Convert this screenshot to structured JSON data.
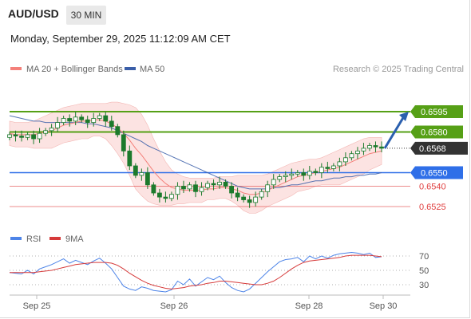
{
  "header": {
    "symbol": "AUD/USD",
    "interval": "30 MIN",
    "datetime": "Monday, September 29, 2025 11:12:09 AM CET"
  },
  "colors": {
    "ma20": "#f4807a",
    "ma50": "#3a5ea8",
    "band_fill": "#fbd9d8",
    "level_green": "#56a016",
    "level_blue": "#2f6fe8",
    "level_red": "#e04040",
    "current_price": "#333333",
    "arrow": "#2a5fae",
    "candle": "#1c7a2c",
    "rsi": "#4d84e8",
    "rsi_ma": "#d63a3a"
  },
  "chart_data": [
    {
      "type": "line",
      "title": "",
      "legend": [
        {
          "name": "MA 20 + Bollinger Bands",
          "color": "#f4807a"
        },
        {
          "name": "MA 50",
          "color": "#3a5ea8"
        }
      ],
      "credit": "Research © 2025 Trading Central",
      "x_ticks": [
        "Sep 25",
        "Sep 26",
        "Sep 28",
        "Sep 30"
      ],
      "ylim": [
        0.651,
        0.661
      ],
      "price_levels": [
        {
          "label": "0.6595",
          "value": 0.6595,
          "kind": "resistance"
        },
        {
          "label": "0.6580",
          "value": 0.658,
          "kind": "resistance"
        },
        {
          "label": "0.6568",
          "value": 0.6568,
          "kind": "current"
        },
        {
          "label": "0.6550",
          "value": 0.655,
          "kind": "pivot"
        },
        {
          "label": "0.6540",
          "value": 0.654,
          "kind": "support"
        },
        {
          "label": "0.6525",
          "value": 0.6525,
          "kind": "support"
        }
      ],
      "projection": {
        "from": 0.6568,
        "to": 0.6595
      },
      "series": [
        {
          "name": "Price",
          "values": [
            0.6578,
            0.6577,
            0.6576,
            0.6578,
            0.6575,
            0.6579,
            0.6581,
            0.6583,
            0.6587,
            0.659,
            0.6588,
            0.6591,
            0.6589,
            0.6587,
            0.659,
            0.6592,
            0.6588,
            0.6584,
            0.6578,
            0.6566,
            0.6555,
            0.6548,
            0.655,
            0.6541,
            0.6535,
            0.6532,
            0.6531,
            0.6534,
            0.654,
            0.6538,
            0.6541,
            0.6536,
            0.6539,
            0.6542,
            0.6541,
            0.6543,
            0.654,
            0.6535,
            0.6532,
            0.653,
            0.6528,
            0.6532,
            0.6536,
            0.6541,
            0.6545,
            0.6547,
            0.6548,
            0.6549,
            0.655,
            0.6548,
            0.6551,
            0.655,
            0.6554,
            0.6553,
            0.6555,
            0.6558,
            0.6561,
            0.6564,
            0.6566,
            0.6568,
            0.657,
            0.6569,
            0.6568
          ]
        },
        {
          "name": "MA 20",
          "values": [
            0.6579,
            0.6578,
            0.6578,
            0.6578,
            0.6578,
            0.6579,
            0.658,
            0.6581,
            0.6583,
            0.6585,
            0.6586,
            0.6587,
            0.6588,
            0.6588,
            0.6589,
            0.6589,
            0.6588,
            0.6586,
            0.6583,
            0.6579,
            0.6574,
            0.6568,
            0.6563,
            0.6557,
            0.6551,
            0.6546,
            0.6542,
            0.6539,
            0.6538,
            0.6537,
            0.6537,
            0.6537,
            0.6537,
            0.6538,
            0.6538,
            0.6539,
            0.6539,
            0.6538,
            0.6537,
            0.6535,
            0.6534,
            0.6534,
            0.6535,
            0.6537,
            0.6539,
            0.6541,
            0.6543,
            0.6545,
            0.6547,
            0.6548,
            0.6549,
            0.655,
            0.6551,
            0.6552,
            0.6553,
            0.6554,
            0.6556,
            0.6558,
            0.656,
            0.6562,
            0.6564,
            0.6565,
            0.6566
          ]
        },
        {
          "name": "Upper Band",
          "values": [
            0.6588,
            0.6587,
            0.6587,
            0.6587,
            0.6588,
            0.659,
            0.6592,
            0.6594,
            0.6596,
            0.6598,
            0.6599,
            0.66,
            0.6601,
            0.6601,
            0.6601,
            0.6601,
            0.6601,
            0.6602,
            0.6602,
            0.6601,
            0.66,
            0.6598,
            0.6593,
            0.6585,
            0.6575,
            0.6566,
            0.6558,
            0.6552,
            0.6549,
            0.6547,
            0.6546,
            0.6546,
            0.6546,
            0.6546,
            0.6546,
            0.6547,
            0.6547,
            0.6547,
            0.6548,
            0.6548,
            0.6548,
            0.6548,
            0.6548,
            0.6549,
            0.6551,
            0.6553,
            0.6555,
            0.6557,
            0.6558,
            0.6559,
            0.656,
            0.656,
            0.6561,
            0.6563,
            0.6565,
            0.6567,
            0.6569,
            0.6571,
            0.6573,
            0.6575,
            0.6576,
            0.6576,
            0.6576
          ]
        },
        {
          "name": "Lower Band",
          "values": [
            0.657,
            0.6569,
            0.6569,
            0.6569,
            0.6568,
            0.6568,
            0.6568,
            0.6568,
            0.657,
            0.6572,
            0.6573,
            0.6574,
            0.6575,
            0.6575,
            0.6577,
            0.6577,
            0.6575,
            0.657,
            0.6564,
            0.6557,
            0.6548,
            0.6538,
            0.6533,
            0.6529,
            0.6527,
            0.6526,
            0.6526,
            0.6526,
            0.6527,
            0.6527,
            0.6528,
            0.6528,
            0.6528,
            0.653,
            0.653,
            0.6531,
            0.6531,
            0.6529,
            0.6526,
            0.6522,
            0.652,
            0.652,
            0.6522,
            0.6525,
            0.6527,
            0.6529,
            0.6531,
            0.6533,
            0.6536,
            0.6537,
            0.6538,
            0.654,
            0.6541,
            0.6541,
            0.6541,
            0.6541,
            0.6543,
            0.6545,
            0.6547,
            0.6549,
            0.6552,
            0.6554,
            0.6556
          ]
        },
        {
          "name": "MA 50",
          "values": [
            0.6592,
            0.6591,
            0.659,
            0.6589,
            0.6588,
            0.6588,
            0.6587,
            0.6587,
            0.6587,
            0.6587,
            0.6587,
            0.6587,
            0.6587,
            0.6586,
            0.6586,
            0.6585,
            0.6584,
            0.6583,
            0.6581,
            0.6579,
            0.6577,
            0.6575,
            0.6573,
            0.657,
            0.6568,
            0.6566,
            0.6564,
            0.6562,
            0.656,
            0.6558,
            0.6556,
            0.6554,
            0.6552,
            0.655,
            0.6548,
            0.6546,
            0.6544,
            0.6542,
            0.654,
            0.6539,
            0.6538,
            0.6538,
            0.6538,
            0.6538,
            0.6539,
            0.6539,
            0.654,
            0.6541,
            0.6541,
            0.6542,
            0.6543,
            0.6544,
            0.6544,
            0.6545,
            0.6546,
            0.6546,
            0.6547,
            0.6547,
            0.6548,
            0.6548,
            0.6549,
            0.6549,
            0.655
          ]
        }
      ]
    },
    {
      "type": "line",
      "title": "",
      "legend": [
        {
          "name": "RSI",
          "color": "#4d84e8"
        },
        {
          "name": "9MA",
          "color": "#d63a3a"
        }
      ],
      "y_ticks": [
        70,
        50,
        30
      ],
      "ylim": [
        15,
        80
      ],
      "series": [
        {
          "name": "RSI",
          "values": [
            47,
            46,
            45,
            50,
            45,
            52,
            55,
            58,
            62,
            66,
            60,
            64,
            61,
            58,
            63,
            67,
            60,
            52,
            40,
            28,
            24,
            22,
            27,
            25,
            22,
            21,
            20,
            23,
            35,
            30,
            38,
            28,
            34,
            40,
            37,
            42,
            33,
            26,
            22,
            20,
            24,
            32,
            40,
            48,
            55,
            62,
            65,
            66,
            68,
            62,
            70,
            66,
            70,
            67,
            71,
            73,
            74,
            75,
            74,
            72,
            74,
            68,
            69
          ]
        },
        {
          "name": "9MA",
          "values": [
            47,
            47,
            47,
            47,
            47,
            48,
            49,
            50,
            52,
            54,
            56,
            58,
            59,
            60,
            61,
            61,
            61,
            60,
            57,
            52,
            46,
            41,
            36,
            32,
            29,
            27,
            25,
            24,
            25,
            26,
            28,
            29,
            30,
            32,
            33,
            35,
            35,
            34,
            33,
            32,
            31,
            30,
            30,
            32,
            35,
            40,
            46,
            52,
            57,
            61,
            63,
            64,
            65,
            66,
            67,
            68,
            70,
            71,
            71,
            71,
            71,
            70,
            69
          ]
        }
      ]
    }
  ]
}
